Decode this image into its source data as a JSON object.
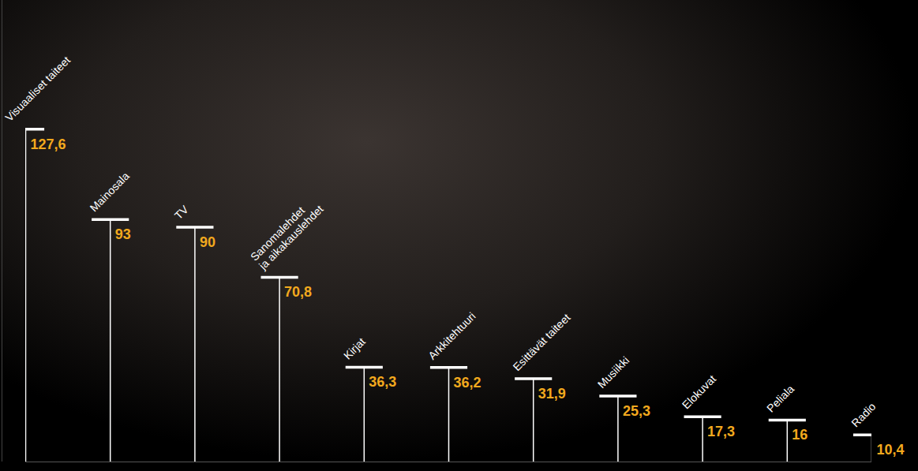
{
  "chart_data": {
    "type": "bar",
    "categories": [
      "Visuaaliset taiteet",
      "Mainosala",
      "TV",
      "Sanomalehdet\nja aikakauslehdet",
      "Kirjat",
      "Arkkitehtuuri",
      "Esittävät taiteet",
      "Musiikki",
      "Elokuvat",
      "Peliala",
      "Radio"
    ],
    "values": [
      127.6,
      93,
      90,
      70.8,
      36.3,
      36.2,
      31.9,
      25.3,
      17.3,
      16,
      10.4
    ],
    "value_labels": [
      "127,6",
      "93",
      "90",
      "70,8",
      "36,3",
      "36,2",
      "31,9",
      "25,3",
      "17,3",
      "16",
      "10,4"
    ],
    "color": "#ffffff",
    "ylim": [
      0,
      177
    ],
    "yticks": [],
    "data_labels": true,
    "tick_labels": false
  }
}
